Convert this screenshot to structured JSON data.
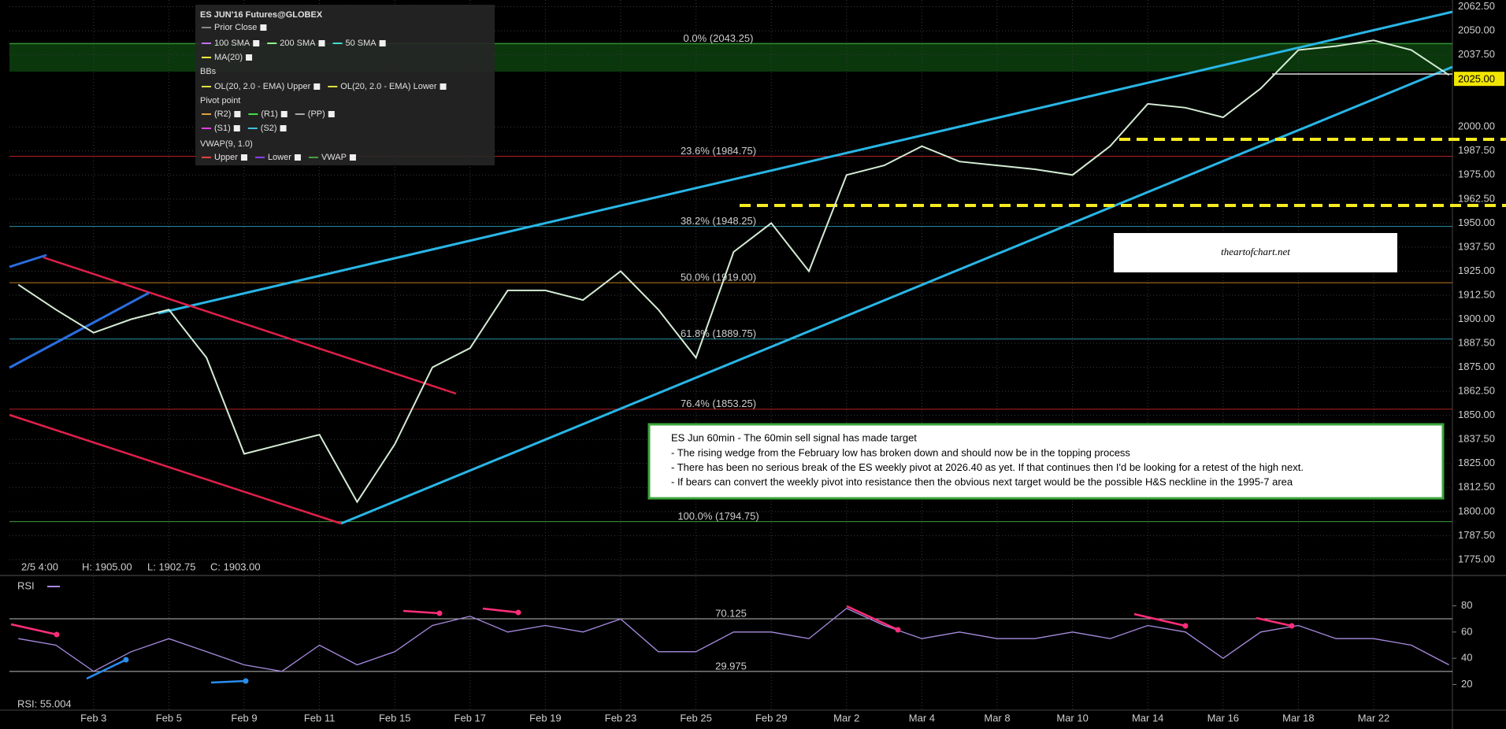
{
  "chart_data": [
    {
      "type": "line",
      "title": "ES JUN'16 Futures@GLOBEX",
      "categories": [
        null,
        null,
        "Feb 3",
        null,
        "Feb 5",
        null,
        "Feb 9",
        null,
        "Feb 11",
        null,
        "Feb 15",
        null,
        "Feb 17",
        null,
        "Feb 19",
        null,
        "Feb 23",
        null,
        "Feb 25",
        null,
        "Feb 29",
        null,
        "Mar 2",
        null,
        "Mar 4",
        null,
        "Mar 8",
        null,
        "Mar 10",
        null,
        "Mar 14",
        null,
        "Mar 16",
        null,
        "Mar 18",
        null,
        "Mar 22",
        null,
        null
      ],
      "values": [
        1918,
        1905,
        1893,
        1900,
        1905,
        1880,
        1830,
        1835,
        1840,
        1805,
        1835,
        1875,
        1885,
        1915,
        1915,
        1910,
        1925,
        1905,
        1880,
        1935,
        1950,
        1925,
        1975,
        1980,
        1990,
        1982,
        1980,
        1978,
        1975,
        1990,
        2012,
        2010,
        2005,
        2020,
        2040,
        2042,
        2045,
        2040,
        2027
      ],
      "color": "#d4ecd4",
      "ylim": [
        1768,
        2066
      ],
      "yticks": [
        {
          "value": 2062.5,
          "label": "2062.50"
        },
        {
          "value": 2050,
          "label": "2050.00"
        },
        {
          "value": 2037.5,
          "label": "2037.50"
        },
        {
          "value": 2000,
          "label": "2000.00"
        },
        {
          "value": 1987.5,
          "label": "1987.50"
        },
        {
          "value": 1975,
          "label": "1975.00"
        },
        {
          "value": 1962.5,
          "label": "1962.50"
        },
        {
          "value": 1950,
          "label": "1950.00"
        },
        {
          "value": 1937.5,
          "label": "1937.50"
        },
        {
          "value": 1925,
          "label": "1925.00"
        },
        {
          "value": 1912.5,
          "label": "1912.50"
        },
        {
          "value": 1900,
          "label": "1900.00"
        },
        {
          "value": 1887.5,
          "label": "1887.50"
        },
        {
          "value": 1875,
          "label": "1875.00"
        },
        {
          "value": 1862.5,
          "label": "1862.50"
        },
        {
          "value": 1850,
          "label": "1850.00"
        },
        {
          "value": 1837.5,
          "label": "1837.50"
        },
        {
          "value": 1825,
          "label": "1825.00"
        },
        {
          "value": 1812.5,
          "label": "1812.50"
        },
        {
          "value": 1800,
          "label": "1800.00"
        },
        {
          "value": 1787.5,
          "label": "1787.50"
        },
        {
          "value": 1775,
          "label": "1775.00"
        }
      ],
      "grid": true,
      "last_price": {
        "value": 2025,
        "label": "2025.00"
      },
      "levels": [
        {
          "value": 2043.25,
          "label": "0.0% (2043.25)",
          "color": "#3f9a3f"
        },
        {
          "value": 1984.75,
          "label": "23.6% (1984.75)",
          "color": "#b02020"
        },
        {
          "value": 1948.25,
          "label": "38.2% (1948.25)",
          "color": "#2a8fa6"
        },
        {
          "value": 1919,
          "label": "50.0% (1919.00)",
          "color": "#c07a20"
        },
        {
          "value": 1889.75,
          "label": "61.8% (1889.75)",
          "color": "#2a8fa6"
        },
        {
          "value": 1853.25,
          "label": "76.4% (1853.25)",
          "color": "#b02020"
        },
        {
          "value": 1794.75,
          "label": "100.0% (1794.75)",
          "color": "#3f9a3f"
        }
      ],
      "info": [
        "2/5 4:00",
        "H: 1905.00",
        "L: 1902.75",
        "C: 1903.00"
      ],
      "legend_rows": [
        [
          {
            "text": "Prior Close",
            "color": "#888888"
          }
        ],
        [
          {
            "text": "100 SMA",
            "color": "#c070ff"
          },
          {
            "text": "200 SMA",
            "color": "#90ff90"
          },
          {
            "text": "50 SMA",
            "color": "#40e0d0"
          }
        ],
        [
          {
            "text": "MA(20)",
            "color": "#ffff40"
          }
        ],
        [
          {
            "text": "BBs"
          }
        ],
        [
          {
            "text": "OL(20, 2.0 - EMA) Upper",
            "color": "#e0e040"
          },
          {
            "text": "OL(20, 2.0 - EMA) Lower",
            "color": "#e0e040"
          }
        ],
        [
          {
            "text": "Pivot point"
          }
        ],
        [
          {
            "text": "(R2)",
            "color": "#e0a040"
          },
          {
            "text": "(R1)",
            "color": "#40e040"
          },
          {
            "text": "(PP)",
            "color": "#aaaaaa"
          }
        ],
        [
          {
            "text": "(S1)",
            "color": "#e040e0"
          },
          {
            "text": "(S2)",
            "color": "#40c0e0"
          }
        ],
        [
          {
            "text": "VWAP(9, 1.0)"
          }
        ],
        [
          {
            "text": "Upper",
            "color": "#e04040"
          },
          {
            "text": "Lower",
            "color": "#8040ff"
          },
          {
            "text": "VWAP",
            "color": "#40a040"
          }
        ]
      ]
    },
    {
      "type": "line",
      "title": "RSI",
      "values": [
        55,
        50,
        30,
        45,
        55,
        45,
        35,
        30,
        50,
        35,
        45,
        65,
        72,
        60,
        65,
        60,
        70,
        45,
        45,
        60,
        60,
        55,
        78,
        65,
        55,
        60,
        55,
        55,
        60,
        55,
        65,
        60,
        40,
        60,
        65,
        55,
        55,
        50,
        35
      ],
      "color": "#a88be0",
      "ylim": [
        0.5,
        100.7
      ],
      "yticks": [
        20,
        40,
        60,
        80
      ],
      "levels": [
        {
          "value": 70.125,
          "label": "70.125"
        },
        {
          "value": 29.975,
          "label": "29.975"
        }
      ],
      "readout": "RSI: 55.004"
    }
  ],
  "watermark": "theartofchart.net",
  "note": {
    "title": "ES Jun 60min - The 60min sell signal has made target",
    "lines": [
      "- The rising wedge from the February low has broken down and should now be in the topping process",
      "- There has been no serious break of the ES weekly pivot at 2026.40 as yet. If that continues then I'd be looking for a retest of the high next.",
      "- If bears can convert the weekly pivot into resistance then the obvious next target would be the possible H&S neckline in the 1995-7 area"
    ]
  }
}
